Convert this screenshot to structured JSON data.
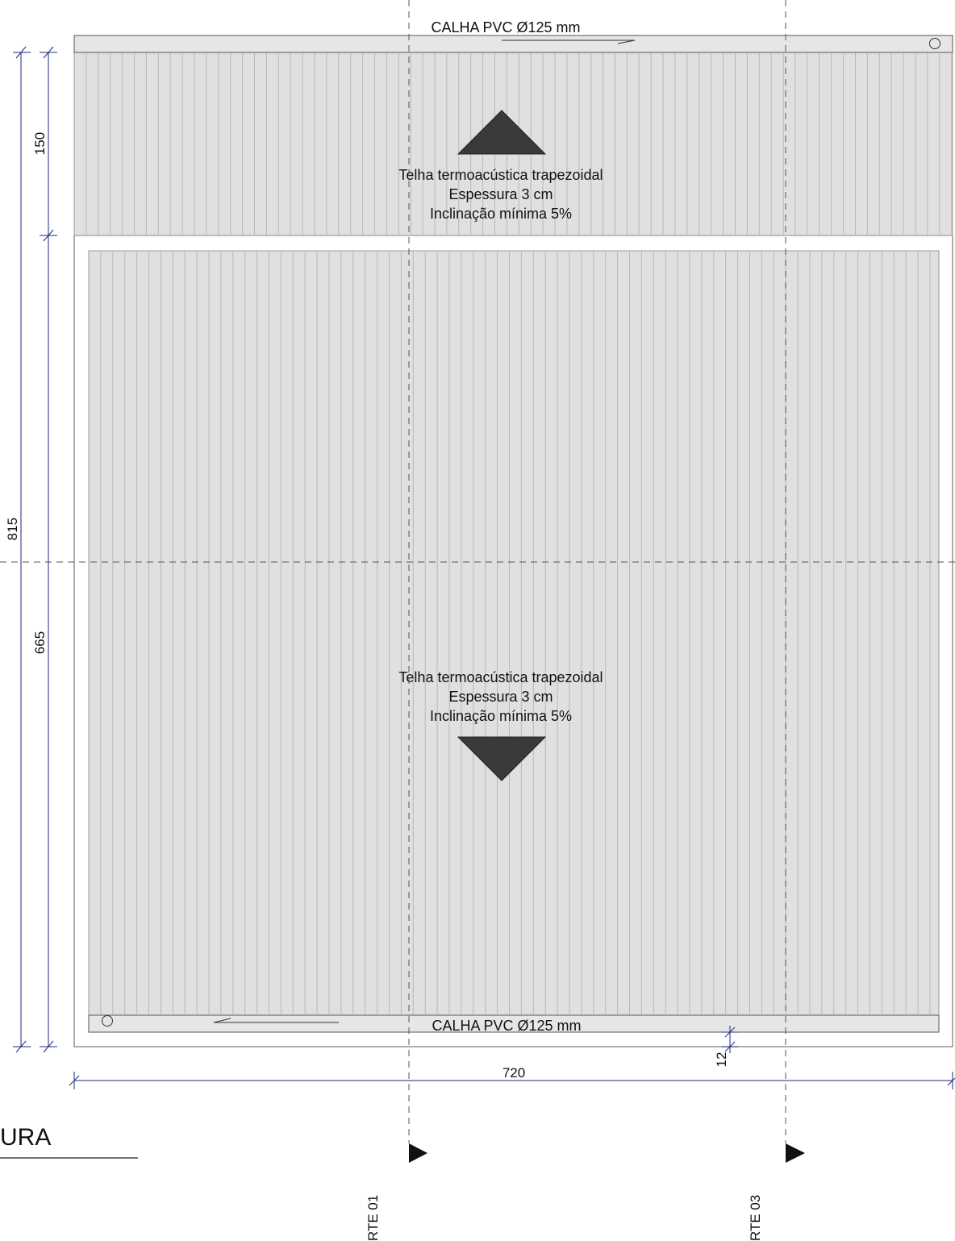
{
  "drawing": {
    "title_fragment": "URA",
    "gutter_top": {
      "label": "CALHA PVC Ø125 mm"
    },
    "gutter_bottom": {
      "label": "CALHA PVC Ø125 mm"
    },
    "roof_upper": {
      "lines": [
        "Telha termoacústica trapezoidal",
        "Espessura 3 cm",
        "Inclinação mínima 5%"
      ],
      "slope_arrow": "up"
    },
    "roof_lower": {
      "lines": [
        "Telha termoacústica trapezoidal",
        "Espessura 3 cm",
        "Inclinação mínima 5%"
      ],
      "slope_arrow": "down"
    },
    "dimensions": {
      "total_height": "815",
      "upper_height": "150",
      "lower_height": "665",
      "total_width": "720",
      "gutter_offset": "12"
    },
    "section_cuts": [
      {
        "label": "RTE 01"
      },
      {
        "label": "RTE 03"
      }
    ],
    "colors": {
      "roof_fill": "#e0e0e0",
      "roof_rib": "#b8b8b8",
      "outline": "#777777",
      "dimension_line": "#1f2a7a",
      "arrow_fill": "#3a3a3a",
      "axis_dash": "#555555"
    }
  }
}
